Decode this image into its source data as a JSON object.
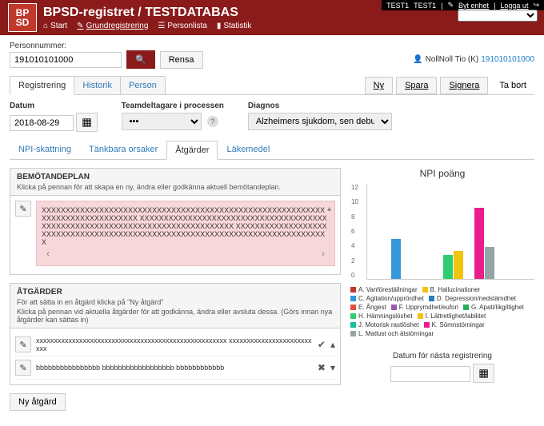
{
  "top_right": {
    "t1": "TEST1",
    "t2": "TEST1",
    "byt": "Byt enhet",
    "logga": "Logga ut",
    "logout_icon": "↪"
  },
  "header": {
    "logo_top": "BP",
    "logo_bottom": "SD",
    "title": "BPSD-registret / TESTDATABAS",
    "nav": {
      "start": "Start",
      "grund": "Grundregistrering",
      "person": "Personlista",
      "stat": "Statistik"
    }
  },
  "search": {
    "label": "Personnummer:",
    "value": "191010101000",
    "rensa": "Rensa",
    "user_prefix": "NollNoll Tio (K)",
    "user_link": "191010101000"
  },
  "main_tabs": {
    "reg": "Registrering",
    "hist": "Historik",
    "pers": "Person"
  },
  "actions": {
    "ny": "Ny",
    "spara": "Spara",
    "signera": "Signera",
    "tabort": "Ta bort"
  },
  "form": {
    "datum_label": "Datum",
    "datum_value": "2018-08-29",
    "team_label": "Teamdeltagare i processen",
    "diagnos_label": "Diagnos",
    "diagnos_value": "Alzheimers sjukdom, sen debut"
  },
  "sub_tabs": {
    "npi": "NPI-skattning",
    "tank": "Tänkbara orsaker",
    "atg": "Åtgärder",
    "lak": "Läkemedel"
  },
  "bemot": {
    "title": "BEMÖTANDEPLAN",
    "sub": "Klicka på pennan för att skapa en ny, ändra eller godkänna aktuell bemötandeplan.",
    "text": "XXXXXXXXXXXXXXXXXXXXXXXXXXXXXXXXXXXXXXXXXXXXXXXXXXXXXXXXXXXXXXXXXXXXXXXXXXXXXXX XXXXXXXXXXXXXXXXXXXXXXXXXXXXXXXXXXXXXXXXXXXXXXXXXXXXXXXXXXXXXXXXXXXXXXXXXXXXXXX XXXXXXXXXXXXXXXXXXXXXXXXXXXXXXXXXXXXXXXXXXXXXXXXXXXXXXXXXXXXXXXXXXXXXXXXXXXXXXX"
  },
  "atgarder": {
    "title": "ÅTGÄRDER",
    "sub1": "För att sätta in en åtgärd klicka på \"Ny åtgärd\"",
    "sub2": "Klicka på pennan vid aktuella åtgärder för att godkänna, ändra eller avsluta dessa. (Görs innan nya åtgärder kan sättas in)",
    "row1": "xxxxxxxxxxxxxxxxxxxxxxxxxxxxxxxxxxxxxxxxxxxxxxxxxxxxx xxxxxxxxxxxxxxxxxxxxxxxxxx",
    "row2": "bbbbbbbbbbbbbbbb bbbbbbbbbbbbbbbbbb bbbbbbbbbbbb",
    "ny_btn": "Ny åtgärd"
  },
  "chart": {
    "title": "NPI poäng",
    "ymax": 12,
    "yticks": [
      "12",
      "10",
      "8",
      "6",
      "4",
      "2",
      "0"
    ],
    "bars": [
      {
        "label": "A",
        "value": 0,
        "color": "#c0392b"
      },
      {
        "label": "B",
        "value": 0,
        "color": "#f1c40f"
      },
      {
        "label": "C",
        "value": 5,
        "color": "#3498db"
      },
      {
        "label": "D",
        "value": 0,
        "color": "#2980b9"
      },
      {
        "label": "E",
        "value": 0,
        "color": "#e74c3c"
      },
      {
        "label": "F",
        "value": 0,
        "color": "#9b59b6"
      },
      {
        "label": "G",
        "value": 0,
        "color": "#27ae60"
      },
      {
        "label": "H",
        "value": 3,
        "color": "#2ecc71"
      },
      {
        "label": "I",
        "value": 3.5,
        "color": "#f1c40f"
      },
      {
        "label": "J",
        "value": 0,
        "color": "#1abc9c"
      },
      {
        "label": "K",
        "value": 9,
        "color": "#e91e8c"
      },
      {
        "label": "L",
        "value": 4,
        "color": "#95a5a6"
      }
    ],
    "legend": [
      {
        "color": "#c0392b",
        "label": "A. Vanföreställningar"
      },
      {
        "color": "#f1c40f",
        "label": "B. Hallucinationer"
      },
      {
        "color": "#3498db",
        "label": "C. Agitation/upprördhet"
      },
      {
        "color": "#2980b9",
        "label": "D. Depression/nedstämdhet"
      },
      {
        "color": "#e74c3c",
        "label": "E. Ångest"
      },
      {
        "color": "#9b59b6",
        "label": "F. Upprymdhet/eufori"
      },
      {
        "color": "#27ae60",
        "label": "G. Apati/likgiltighet"
      },
      {
        "color": "#2ecc71",
        "label": "H. Hämningslöshet"
      },
      {
        "color": "#f1c40f",
        "label": "I. Lättretlighet/labilitet"
      },
      {
        "color": "#1abc9c",
        "label": "J. Motorisk rastlöshet"
      },
      {
        "color": "#e91e8c",
        "label": "K. Sömnstörningar"
      },
      {
        "color": "#95a5a6",
        "label": "L. Matlust och ätstörningar"
      }
    ]
  },
  "next_reg": {
    "label": "Datum för nästa registrering"
  }
}
